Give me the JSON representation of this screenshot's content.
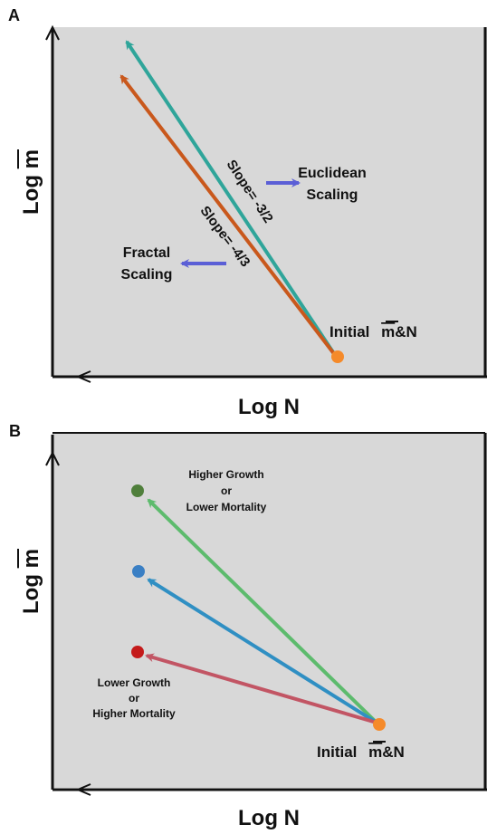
{
  "panels": [
    {
      "letter": "A",
      "xlabel": "Log N",
      "ylabel_prefix": "Log ",
      "ylabel_var": "m",
      "labels": {
        "euclidean_line1": "Euclidean",
        "euclidean_line2": "Scaling",
        "fractal_line1": "Fractal",
        "fractal_line2": "Scaling",
        "slope_teal": "Slope= -3/2",
        "slope_orange": "Slope= -4/3",
        "initial_prefix": "Initial ",
        "initial_var": "m",
        "initial_suffix": "&N"
      },
      "colors": {
        "teal": "#2fa59a",
        "orange": "#c9581c",
        "start": "#f58a2a",
        "pointer": "#5b5fd6",
        "bg": "#d8d8d8"
      }
    },
    {
      "letter": "B",
      "xlabel": "Log N",
      "ylabel_prefix": "Log ",
      "ylabel_var": "m",
      "labels": {
        "higher_line1": "Higher Growth",
        "higher_line2": "or",
        "higher_line3": "Lower Mortality",
        "lower_line1": "Lower Growth",
        "lower_line2": "or",
        "lower_line3": "Higher Mortality",
        "initial_prefix": "Initial ",
        "initial_var": "m",
        "initial_suffix": "&N"
      },
      "colors": {
        "green": "#5dbb6d",
        "blue": "#2f8fc3",
        "red": "#c25564",
        "green_dot": "#4f7f3b",
        "blue_dot": "#3a7fc4",
        "red_dot": "#c41a1a",
        "start": "#f58a2a",
        "bg": "#d8d8d8"
      }
    }
  ]
}
